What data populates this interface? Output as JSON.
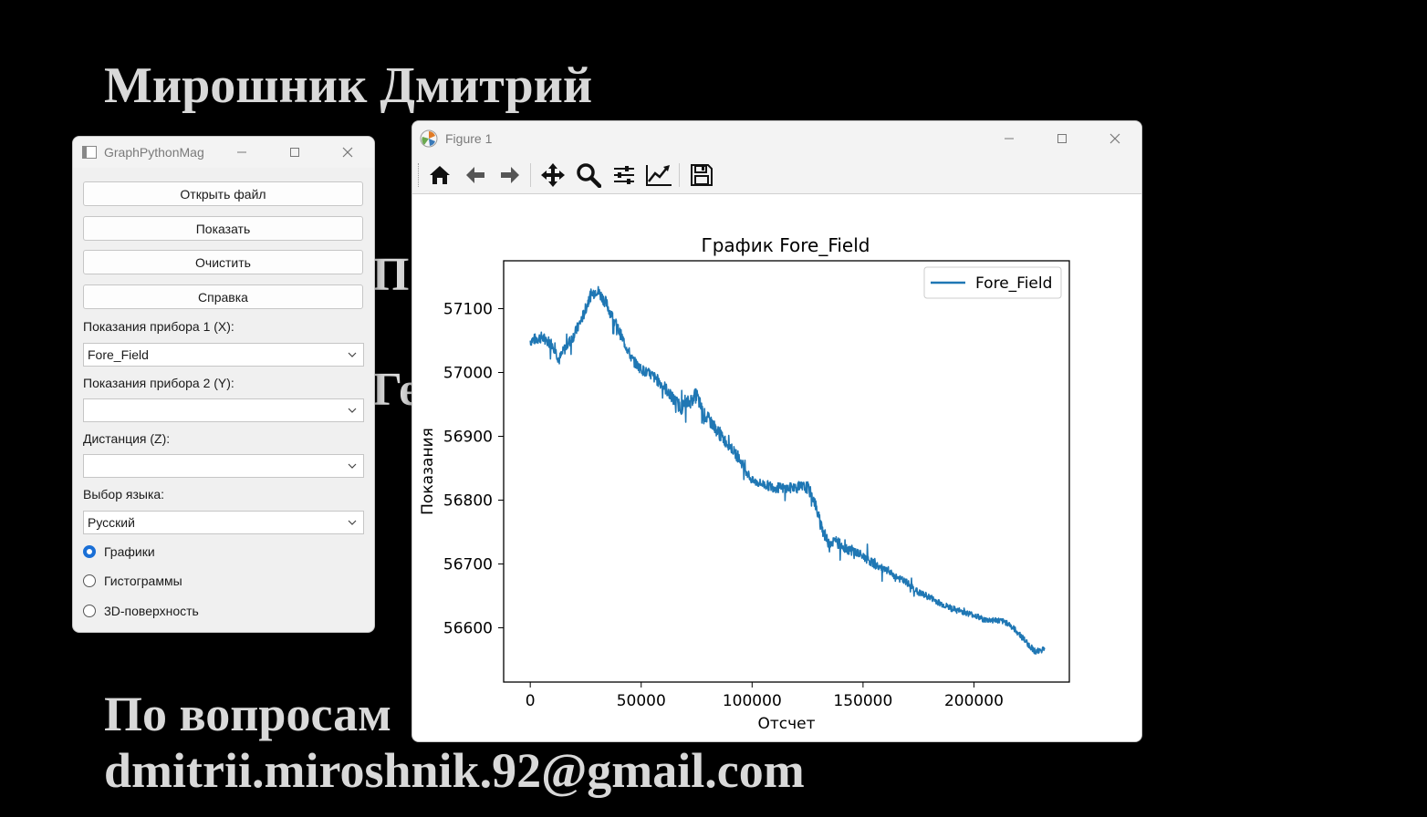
{
  "slide": {
    "author": "Мирошник Дмитрий",
    "hidden_text_1": "П",
    "hidden_text_2": "Ге",
    "contact_line1": "По вопросам",
    "contact_email": "dmitrii.miroshnik.92@gmail.com"
  },
  "app_window": {
    "title": "GraphPythonMag",
    "buttons": {
      "open": "Открыть файл",
      "show": "Показать",
      "clear": "Очистить",
      "help": "Справка"
    },
    "labels": {
      "device1": "Показания прибора 1 (X):",
      "device2": "Показания прибора 2 (Y):",
      "distance": "Дистанция (Z):",
      "language": "Выбор языка:"
    },
    "combos": {
      "device1": "Fore_Field",
      "device2": "",
      "distance": "",
      "language": "Русский"
    },
    "radios": [
      {
        "label": "Графики",
        "selected": true
      },
      {
        "label": "Гистограммы",
        "selected": false
      },
      {
        "label": "3D-поверхность",
        "selected": false
      }
    ]
  },
  "figure_window": {
    "title": "Figure 1",
    "toolbar": [
      "home-icon",
      "back-icon",
      "forward-icon",
      "pan-icon",
      "zoom-icon",
      "configure-subplots-icon",
      "edit-axis-icon",
      "save-icon"
    ]
  },
  "chart_data": {
    "type": "line",
    "title": "График Fore_Field",
    "xlabel": "Отсчет",
    "ylabel": "Показания",
    "xlim": [
      -12000,
      243000
    ],
    "ylim": [
      56515,
      57175
    ],
    "xticks": [
      0,
      50000,
      100000,
      150000,
      200000
    ],
    "yticks": [
      56600,
      56700,
      56800,
      56900,
      57000,
      57100
    ],
    "legend": "top-right",
    "grid": false,
    "color": "#1f77b4",
    "series": [
      {
        "name": "Fore_Field",
        "trend": [
          [
            0,
            57050
          ],
          [
            5000,
            57055
          ],
          [
            10000,
            57045
          ],
          [
            13000,
            57020
          ],
          [
            16000,
            57040
          ],
          [
            20000,
            57060
          ],
          [
            24000,
            57090
          ],
          [
            27000,
            57120
          ],
          [
            30000,
            57130
          ],
          [
            34000,
            57110
          ],
          [
            38000,
            57080
          ],
          [
            42000,
            57050
          ],
          [
            46000,
            57020
          ],
          [
            50000,
            57005
          ],
          [
            55000,
            56995
          ],
          [
            60000,
            56980
          ],
          [
            64000,
            56960
          ],
          [
            68000,
            56945
          ],
          [
            72000,
            56955
          ],
          [
            75000,
            56965
          ],
          [
            78000,
            56935
          ],
          [
            82000,
            56920
          ],
          [
            86000,
            56900
          ],
          [
            90000,
            56885
          ],
          [
            95000,
            56860
          ],
          [
            100000,
            56830
          ],
          [
            105000,
            56825
          ],
          [
            110000,
            56820
          ],
          [
            115000,
            56818
          ],
          [
            120000,
            56820
          ],
          [
            125000,
            56820
          ],
          [
            128000,
            56800
          ],
          [
            131000,
            56760
          ],
          [
            134000,
            56735
          ],
          [
            138000,
            56735
          ],
          [
            142000,
            56725
          ],
          [
            146000,
            56720
          ],
          [
            150000,
            56712
          ],
          [
            155000,
            56700
          ],
          [
            160000,
            56690
          ],
          [
            165000,
            56680
          ],
          [
            170000,
            56670
          ],
          [
            175000,
            56655
          ],
          [
            180000,
            56648
          ],
          [
            185000,
            56638
          ],
          [
            190000,
            56630
          ],
          [
            195000,
            56625
          ],
          [
            200000,
            56620
          ],
          [
            205000,
            56612
          ],
          [
            210000,
            56612
          ],
          [
            215000,
            56608
          ],
          [
            220000,
            56592
          ],
          [
            225000,
            56572
          ],
          [
            228000,
            56562
          ],
          [
            232000,
            56568
          ]
        ],
        "noise_amplitude": [
          [
            0,
            18
          ],
          [
            20000,
            18
          ],
          [
            30000,
            20
          ],
          [
            50000,
            16
          ],
          [
            75000,
            24
          ],
          [
            100000,
            14
          ],
          [
            130000,
            20
          ],
          [
            160000,
            12
          ],
          [
            200000,
            9
          ],
          [
            232000,
            10
          ]
        ]
      }
    ]
  }
}
